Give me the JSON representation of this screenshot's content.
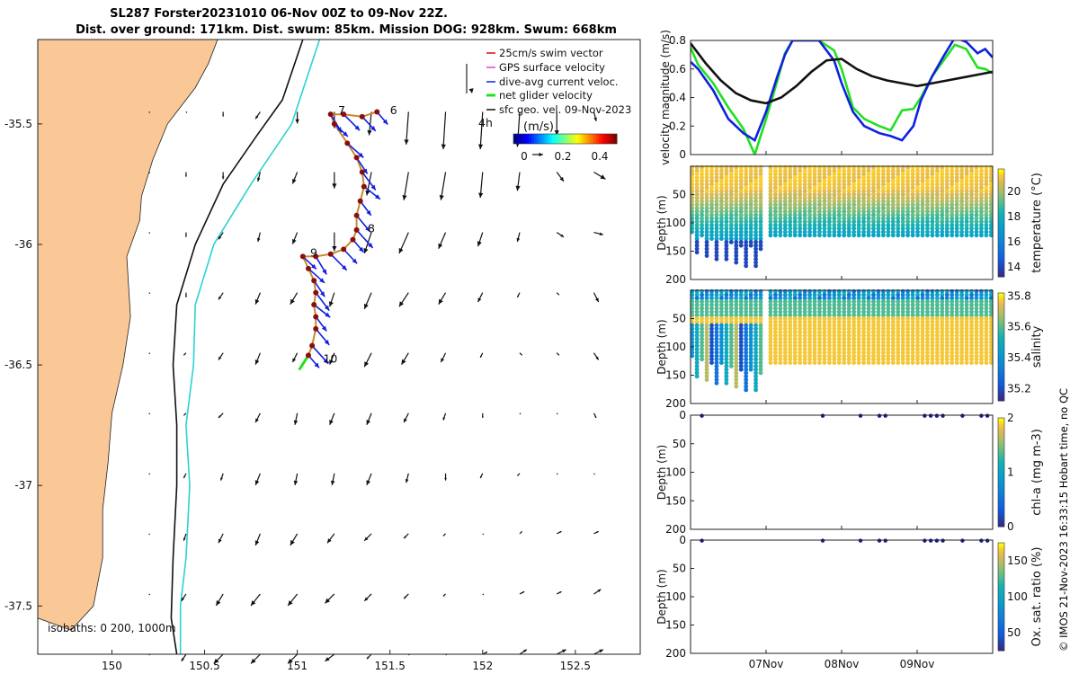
{
  "title_line1": "SL287 Forster20231010 06-Nov 00Z to 09-Nov 22Z.",
  "title_line2": "Dist. over ground: 171km. Dist. swum: 85km. Mission DOG: 928km. Swum: 668km",
  "credit": "© IMOS 21-Nov-2023 16:33:15 Hobart time, no QC",
  "colors": {
    "land": "#f9c896",
    "isobath200": "#2cd2d2",
    "isobath1000": "#111111",
    "swim_vector": "#d01010",
    "gps_velocity": "#e040e0",
    "dive_avg": "#1020e0",
    "net_glider": "#20e020",
    "sfc_geo": "#111111",
    "track_dot": "#8b0d0d"
  },
  "chart_data": [
    {
      "type": "map",
      "xlim": [
        149.6,
        152.85
      ],
      "ylim": [
        -37.7,
        -35.15
      ],
      "xticks": [
        150,
        150.5,
        151,
        151.5,
        152,
        152.5
      ],
      "xtick_labels": [
        "150",
        "150.5",
        "151",
        "151.5",
        "152",
        "152.5"
      ],
      "yticks": [
        -35.5,
        -36,
        -36.5,
        -37,
        -37.5
      ],
      "ytick_labels": [
        "-35.5",
        "-36",
        "-36.5",
        "-37",
        "-37.5"
      ],
      "isobath_note": "isobaths: 0   200, 1000m",
      "legend": [
        "25cm/s swim vector",
        "GPS surface velocity",
        "dive-avg current veloc.",
        "net glider velocity",
        "sfc geo. vel. 09-Nov-2023"
      ],
      "colorbar_title": "(m/s)",
      "colorbar_ticks": [
        "0",
        "0.2",
        "0.4"
      ],
      "scale_arrow_label": "4h",
      "day_labels": [
        {
          "text": "6",
          "lon": 151.5,
          "lat": -35.46
        },
        {
          "text": "7",
          "lon": 151.22,
          "lat": -35.46
        },
        {
          "text": "8",
          "lon": 151.38,
          "lat": -35.95
        },
        {
          "text": "9",
          "lon": 151.07,
          "lat": -36.05
        },
        {
          "text": "10",
          "lon": 151.14,
          "lat": -36.49
        }
      ],
      "coast": [
        [
          149.6,
          -35.15
        ],
        [
          150.57,
          -35.15
        ],
        [
          150.52,
          -35.25
        ],
        [
          150.45,
          -35.35
        ],
        [
          150.3,
          -35.5
        ],
        [
          150.22,
          -35.65
        ],
        [
          150.16,
          -35.8
        ],
        [
          150.15,
          -35.9
        ],
        [
          150.08,
          -36.05
        ],
        [
          150.1,
          -36.3
        ],
        [
          150.06,
          -36.5
        ],
        [
          150.0,
          -36.7
        ],
        [
          149.98,
          -36.9
        ],
        [
          149.95,
          -37.1
        ],
        [
          149.95,
          -37.3
        ],
        [
          149.9,
          -37.5
        ],
        [
          149.78,
          -37.6
        ],
        [
          149.6,
          -37.55
        ]
      ],
      "isobath_1000": [
        [
          151.03,
          -35.15
        ],
        [
          150.92,
          -35.4
        ],
        [
          150.78,
          -35.55
        ],
        [
          150.6,
          -35.75
        ],
        [
          150.45,
          -36.0
        ],
        [
          150.35,
          -36.25
        ],
        [
          150.33,
          -36.5
        ],
        [
          150.35,
          -36.75
        ],
        [
          150.35,
          -37.0
        ],
        [
          150.33,
          -37.3
        ],
        [
          150.32,
          -37.55
        ],
        [
          150.35,
          -37.7
        ]
      ],
      "isobath_200": [
        [
          151.12,
          -35.15
        ],
        [
          150.97,
          -35.5
        ],
        [
          150.75,
          -35.75
        ],
        [
          150.55,
          -36.0
        ],
        [
          150.45,
          -36.25
        ],
        [
          150.44,
          -36.5
        ],
        [
          150.4,
          -36.75
        ],
        [
          150.42,
          -37.0
        ],
        [
          150.4,
          -37.3
        ],
        [
          150.37,
          -37.5
        ],
        [
          150.37,
          -37.7
        ]
      ],
      "glider_track": [
        [
          151.43,
          -35.45
        ],
        [
          151.35,
          -35.47
        ],
        [
          151.25,
          -35.46
        ],
        [
          151.18,
          -35.46
        ],
        [
          151.2,
          -35.5
        ],
        [
          151.27,
          -35.58
        ],
        [
          151.32,
          -35.64
        ],
        [
          151.35,
          -35.7
        ],
        [
          151.36,
          -35.76
        ],
        [
          151.34,
          -35.82
        ],
        [
          151.32,
          -35.88
        ],
        [
          151.32,
          -35.94
        ],
        [
          151.3,
          -35.98
        ],
        [
          151.25,
          -36.02
        ],
        [
          151.18,
          -36.04
        ],
        [
          151.1,
          -36.05
        ],
        [
          151.03,
          -36.05
        ],
        [
          151.06,
          -36.1
        ],
        [
          151.09,
          -36.15
        ],
        [
          151.1,
          -36.2
        ],
        [
          151.09,
          -36.25
        ],
        [
          151.1,
          -36.3
        ],
        [
          151.1,
          -36.35
        ],
        [
          151.08,
          -36.42
        ],
        [
          151.06,
          -36.46
        ]
      ],
      "net_glider_segment": [
        [
          151.06,
          -36.46
        ],
        [
          151.01,
          -36.52
        ]
      ],
      "arrow_grid": {
        "lon0": 150.2,
        "dlon": 0.2,
        "lat0": -35.45,
        "dlat": -0.25,
        "ncols": 13,
        "nrows": 10,
        "u": [
          [
            0.0,
            0.0,
            0.0,
            -0.02,
            0.0,
            0.0,
            -0.01,
            -0.01,
            -0.01,
            -0.01,
            -0.01,
            0.0,
            0.01
          ],
          [
            0.0,
            0.0,
            0.0,
            -0.01,
            -0.02,
            0.0,
            -0.02,
            -0.02,
            -0.02,
            -0.01,
            -0.01,
            0.03,
            0.05
          ],
          [
            0.0,
            0.0,
            -0.02,
            -0.01,
            -0.02,
            0.0,
            -0.03,
            -0.04,
            -0.03,
            -0.02,
            -0.01,
            0.03,
            0.04
          ],
          [
            0.0,
            0.0,
            -0.02,
            -0.02,
            -0.03,
            -0.02,
            -0.03,
            -0.04,
            -0.03,
            -0.02,
            -0.01,
            0.01,
            0.02
          ],
          [
            0.0,
            -0.01,
            -0.02,
            -0.02,
            -0.02,
            -0.02,
            -0.03,
            -0.03,
            -0.02,
            -0.01,
            0.01,
            0.01,
            0.02
          ],
          [
            0.0,
            -0.01,
            -0.02,
            -0.02,
            -0.01,
            -0.02,
            -0.02,
            -0.02,
            -0.01,
            0.0,
            0.0,
            0.0,
            0.01
          ],
          [
            0.0,
            -0.01,
            -0.01,
            -0.02,
            -0.01,
            -0.01,
            -0.02,
            -0.01,
            0.0,
            -0.01,
            -0.01,
            0.0,
            0.0
          ],
          [
            0.0,
            -0.01,
            -0.02,
            -0.02,
            -0.03,
            -0.03,
            -0.03,
            -0.02,
            -0.01,
            0.01,
            0.01,
            0.02,
            0.02
          ],
          [
            0.0,
            -0.02,
            -0.03,
            -0.04,
            -0.04,
            -0.04,
            -0.03,
            -0.02,
            -0.01,
            0.01,
            0.02,
            0.02,
            0.03
          ],
          [
            0.0,
            -0.02,
            -0.04,
            -0.04,
            -0.04,
            -0.04,
            -0.02,
            0.0,
            0.01,
            0.02,
            0.03,
            0.04,
            0.04
          ]
        ],
        "v": [
          [
            0.0,
            -0.01,
            -0.02,
            -0.03,
            -0.05,
            -0.07,
            -0.1,
            -0.14,
            -0.16,
            -0.16,
            -0.15,
            -0.1,
            -0.04
          ],
          [
            0.0,
            -0.02,
            -0.03,
            -0.04,
            -0.05,
            -0.07,
            -0.1,
            -0.12,
            -0.12,
            -0.11,
            -0.08,
            -0.04,
            -0.03
          ],
          [
            0.0,
            -0.02,
            -0.03,
            -0.04,
            -0.05,
            -0.08,
            -0.09,
            -0.09,
            -0.07,
            -0.06,
            -0.04,
            -0.02,
            -0.01
          ],
          [
            0.0,
            -0.02,
            -0.03,
            -0.05,
            -0.05,
            -0.06,
            -0.07,
            -0.06,
            -0.05,
            -0.04,
            -0.02,
            -0.01,
            -0.04
          ],
          [
            0.0,
            -0.01,
            -0.03,
            -0.05,
            -0.04,
            -0.05,
            -0.06,
            -0.05,
            -0.04,
            -0.02,
            -0.01,
            -0.01,
            -0.03
          ],
          [
            0.0,
            -0.01,
            -0.02,
            -0.04,
            -0.05,
            -0.05,
            -0.05,
            -0.04,
            -0.03,
            -0.02,
            -0.01,
            -0.01,
            -0.02
          ],
          [
            -0.01,
            -0.02,
            -0.03,
            -0.05,
            -0.05,
            -0.05,
            -0.05,
            -0.04,
            -0.03,
            -0.02,
            -0.01,
            -0.01,
            -0.01
          ],
          [
            -0.01,
            -0.03,
            -0.04,
            -0.05,
            -0.05,
            -0.04,
            -0.03,
            -0.02,
            -0.01,
            0.0,
            0.01,
            0.01,
            0.01
          ],
          [
            -0.01,
            -0.03,
            -0.05,
            -0.05,
            -0.05,
            -0.04,
            -0.03,
            -0.02,
            -0.01,
            0.0,
            0.01,
            0.01,
            0.02
          ],
          [
            0.0,
            -0.03,
            -0.04,
            -0.04,
            -0.04,
            -0.03,
            -0.02,
            -0.01,
            0.0,
            0.01,
            0.02,
            0.02,
            0.02
          ]
        ]
      }
    },
    {
      "type": "line",
      "ylabel": "velocity magnitude (m/s)",
      "x_range_days": [
        0,
        4
      ],
      "ylim": [
        0,
        0.8
      ],
      "yticks": [
        0,
        0.2,
        0.4,
        0.6,
        0.8
      ],
      "ytick_labels": [
        "0",
        "0.2",
        "0.4",
        "0.6",
        "0.8"
      ],
      "xtick_labels": [
        "07Nov",
        "08Nov",
        "09Nov"
      ],
      "xticks_days": [
        1,
        2,
        3
      ],
      "series": [
        {
          "name": "net glider velocity",
          "color": "#20e020",
          "x": [
            0.0,
            0.1,
            0.3,
            0.5,
            0.7,
            0.85,
            1.0,
            1.15,
            1.25,
            1.35,
            1.5,
            1.7,
            1.9,
            2.0,
            2.15,
            2.3,
            2.5,
            2.65,
            2.8,
            2.95,
            3.05,
            3.2,
            3.35,
            3.5,
            3.65,
            3.8,
            3.9,
            4.0
          ],
          "y": [
            0.75,
            0.63,
            0.5,
            0.33,
            0.18,
            0.0,
            0.25,
            0.52,
            0.71,
            0.8,
            0.8,
            0.8,
            0.73,
            0.6,
            0.33,
            0.25,
            0.2,
            0.17,
            0.31,
            0.32,
            0.4,
            0.55,
            0.66,
            0.77,
            0.74,
            0.61,
            0.6,
            0.57
          ]
        },
        {
          "name": "dive-avg current veloc.",
          "color": "#1020e0",
          "x": [
            0.0,
            0.1,
            0.3,
            0.5,
            0.7,
            0.85,
            1.0,
            1.15,
            1.25,
            1.35,
            1.5,
            1.7,
            1.9,
            2.0,
            2.15,
            2.3,
            2.5,
            2.65,
            2.8,
            2.95,
            3.05,
            3.2,
            3.35,
            3.5,
            3.65,
            3.8,
            3.9,
            4.0
          ],
          "y": [
            0.65,
            0.6,
            0.45,
            0.25,
            0.15,
            0.1,
            0.3,
            0.55,
            0.7,
            0.8,
            0.8,
            0.8,
            0.66,
            0.5,
            0.3,
            0.2,
            0.15,
            0.13,
            0.1,
            0.2,
            0.38,
            0.55,
            0.69,
            0.82,
            0.79,
            0.71,
            0.74,
            0.68
          ]
        },
        {
          "name": "sfc geo. vel. 09-Nov-2023",
          "color": "#111111",
          "x": [
            0.0,
            0.2,
            0.4,
            0.6,
            0.8,
            1.0,
            1.2,
            1.4,
            1.6,
            1.8,
            2.0,
            2.2,
            2.4,
            2.6,
            2.8,
            3.0,
            3.2,
            3.4,
            3.6,
            3.8,
            4.0
          ],
          "y": [
            0.78,
            0.64,
            0.52,
            0.43,
            0.38,
            0.36,
            0.4,
            0.48,
            0.58,
            0.66,
            0.67,
            0.6,
            0.55,
            0.52,
            0.5,
            0.48,
            0.5,
            0.52,
            0.54,
            0.56,
            0.58
          ]
        }
      ]
    },
    {
      "type": "scatter",
      "ylabel": "Depth (m)",
      "colorbar_label": "temperature (°C)",
      "ylim": [
        200,
        0
      ],
      "yticks": [
        50,
        100,
        150,
        200
      ],
      "ytick_labels": [
        "50",
        "100",
        "150",
        "200"
      ],
      "colorbar_range": [
        13.2,
        21.8
      ],
      "colorbar_ticks": [
        14,
        16,
        18,
        20
      ],
      "colorbar_tick_labels": [
        "14",
        "16",
        "18",
        "20"
      ],
      "profile_depths": {
        "early_bottom": 185,
        "late_bottom": 125,
        "switch_day": 1.0
      },
      "colormap": "parula"
    },
    {
      "type": "scatter",
      "ylabel": "Depth (m)",
      "colorbar_label": "salinity",
      "ylim": [
        200,
        0
      ],
      "yticks": [
        50,
        100,
        150,
        200
      ],
      "ytick_labels": [
        "50",
        "100",
        "150",
        "200"
      ],
      "colorbar_range": [
        35.12,
        35.82
      ],
      "colorbar_ticks": [
        35.2,
        35.4,
        35.6,
        35.8
      ],
      "colorbar_tick_labels": [
        "35.2",
        "35.4",
        "35.6",
        "35.8"
      ],
      "colormap": "parula"
    },
    {
      "type": "scatter",
      "ylabel": "Depth (m)",
      "colorbar_label": "chl-a (mg m-3)",
      "ylim": [
        200,
        0
      ],
      "yticks": [
        0,
        50,
        100,
        150,
        200
      ],
      "ytick_labels": [
        "0",
        "50",
        "100",
        "150",
        "200"
      ],
      "colorbar_range": [
        0,
        2
      ],
      "colorbar_ticks": [
        0,
        1,
        2
      ],
      "colorbar_tick_labels": [
        "0",
        "1",
        "2"
      ],
      "surface_sample_days": [
        0.15,
        1.75,
        2.25,
        2.5,
        2.58,
        3.1,
        3.18,
        3.26,
        3.34,
        3.6,
        3.85,
        3.93
      ],
      "colormap": "parula"
    },
    {
      "type": "scatter",
      "ylabel": "Depth (m)",
      "colorbar_label": "Ox. sat. ratio (%)",
      "ylim": [
        200,
        0
      ],
      "yticks": [
        0,
        50,
        100,
        150,
        200
      ],
      "ytick_labels": [
        "0",
        "50",
        "100",
        "150",
        "200"
      ],
      "colorbar_range": [
        25,
        175
      ],
      "colorbar_ticks": [
        50,
        100,
        150
      ],
      "colorbar_tick_labels": [
        "50",
        "100",
        "150"
      ],
      "surface_sample_days": [
        0.15,
        1.75,
        2.25,
        2.5,
        2.58,
        3.1,
        3.18,
        3.26,
        3.34,
        3.6,
        3.85,
        3.93
      ],
      "colormap": "parula"
    }
  ]
}
